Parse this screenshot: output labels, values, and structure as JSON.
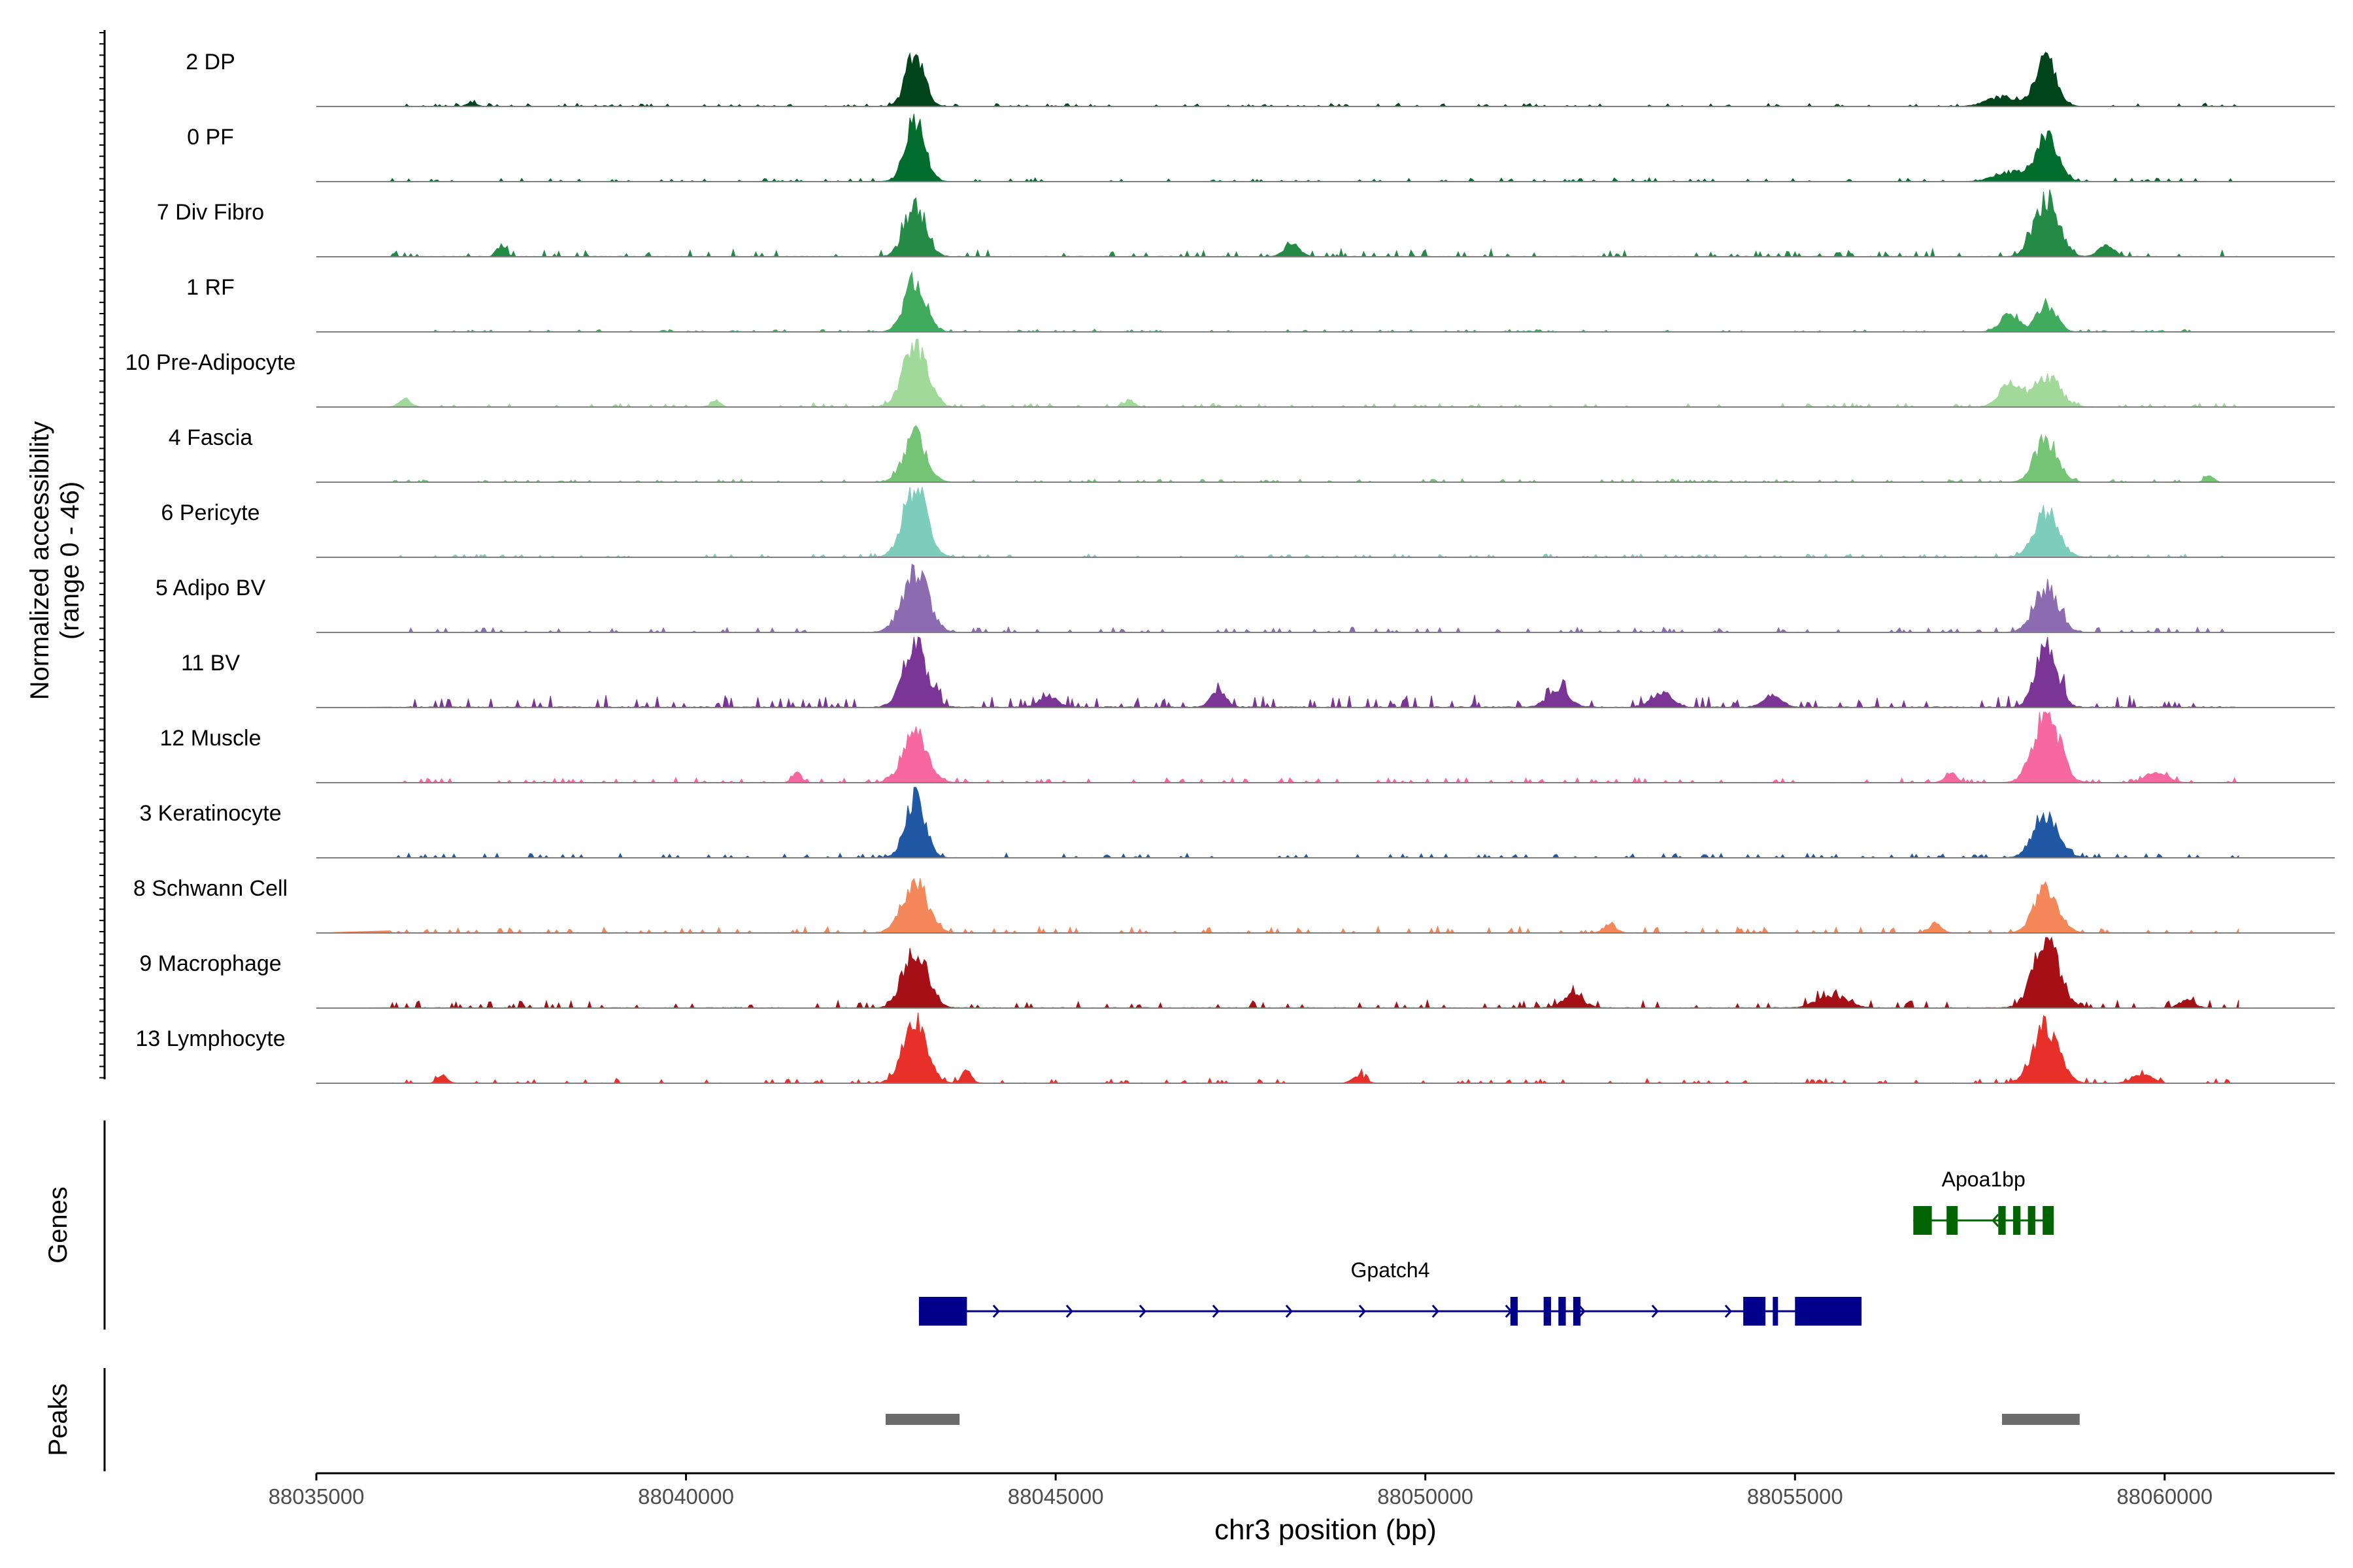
{
  "chart_data": {
    "type": "area",
    "xlabel": "chr3 position (bp)",
    "ylabel_line1": "Normalized accessibility",
    "ylabel_line2": "(range 0 - 46)",
    "yrange": [
      0,
      46
    ],
    "xlim": [
      88035000,
      88062300
    ],
    "xticks": [
      88035000,
      88040000,
      88045000,
      88050000,
      88055000,
      88060000
    ],
    "xtick_labels": [
      "88035000",
      "88040000",
      "88045000",
      "88050000",
      "88055000",
      "88060000"
    ],
    "tracks": [
      {
        "name": "2 DP",
        "color": "#00441b",
        "peaks": [
          [
            88043100,
            36,
            120
          ],
          [
            88058400,
            30,
            140
          ],
          [
            88037100,
            3,
            60
          ],
          [
            88057800,
            6,
            200
          ]
        ],
        "noise": 1.2
      },
      {
        "name": "0 PF",
        "color": "#006d2c",
        "peaks": [
          [
            88043100,
            38,
            130
          ],
          [
            88058400,
            28,
            150
          ],
          [
            88057900,
            6,
            200
          ]
        ],
        "noise": 1.4
      },
      {
        "name": "7 Div Fibro",
        "color": "#238b45",
        "peaks": [
          [
            88043100,
            34,
            140
          ],
          [
            88058400,
            38,
            160
          ],
          [
            88037500,
            7,
            60
          ],
          [
            88048200,
            9,
            100
          ],
          [
            88059200,
            8,
            100
          ]
        ],
        "noise": 3.0
      },
      {
        "name": "1 RF",
        "color": "#41ab5d",
        "peaks": [
          [
            88043100,
            33,
            140
          ],
          [
            88058400,
            18,
            130
          ],
          [
            88057900,
            12,
            120
          ]
        ],
        "noise": 1.0
      },
      {
        "name": "10 Pre-Adipocyte",
        "color": "#a1d99b",
        "peaks": [
          [
            88043100,
            38,
            160
          ],
          [
            88058400,
            20,
            180
          ],
          [
            88057900,
            14,
            140
          ],
          [
            88036200,
            5,
            80
          ],
          [
            88040400,
            5,
            60
          ],
          [
            88046000,
            5,
            60
          ]
        ],
        "noise": 1.6
      },
      {
        "name": "4 Fascia",
        "color": "#74c476",
        "peaks": [
          [
            88043100,
            30,
            150
          ],
          [
            88058400,
            28,
            150
          ],
          [
            88060600,
            4,
            60
          ]
        ],
        "noise": 1.2
      },
      {
        "name": "6 Pericyte",
        "color": "#7ccdbb",
        "peaks": [
          [
            88043100,
            46,
            160
          ],
          [
            88058400,
            30,
            160
          ]
        ],
        "noise": 1.4
      },
      {
        "name": "5 Adipo BV",
        "color": "#8c6bb1",
        "peaks": [
          [
            88043100,
            40,
            170
          ],
          [
            88058400,
            30,
            160
          ]
        ],
        "noise": 2.0
      },
      {
        "name": "11 BV",
        "color": "#7a3596",
        "peaks": [
          [
            88043100,
            40,
            160
          ],
          [
            88058400,
            44,
            140
          ],
          [
            88044900,
            8,
            120
          ],
          [
            88047200,
            10,
            100
          ],
          [
            88051800,
            12,
            140
          ],
          [
            88053200,
            10,
            140
          ],
          [
            88054700,
            8,
            120
          ]
        ],
        "noise": 5.0
      },
      {
        "name": "12 Muscle",
        "color": "#f768a1",
        "peaks": [
          [
            88043100,
            34,
            160
          ],
          [
            88058400,
            46,
            170
          ],
          [
            88041500,
            6,
            60
          ],
          [
            88057100,
            6,
            80
          ],
          [
            88059900,
            7,
            140
          ]
        ],
        "noise": 2.0
      },
      {
        "name": "3 Keratinocyte",
        "color": "#2158a6",
        "peaks": [
          [
            88043100,
            40,
            130
          ],
          [
            88058400,
            26,
            170
          ]
        ],
        "noise": 1.8
      },
      {
        "name": "8 Schwann Cell",
        "color": "#f4875a",
        "peaks": [
          [
            88043100,
            30,
            170
          ],
          [
            88058400,
            28,
            160
          ],
          [
            88052500,
            6,
            80
          ],
          [
            88056900,
            6,
            80
          ]
        ],
        "noise": 2.4
      },
      {
        "name": "9 Macrophage",
        "color": "#a50f15",
        "peaks": [
          [
            88043100,
            38,
            160
          ],
          [
            88058400,
            44,
            170
          ],
          [
            88052000,
            8,
            140
          ],
          [
            88055500,
            8,
            200
          ],
          [
            88060300,
            5,
            100
          ]
        ],
        "noise": 3.2
      },
      {
        "name": "13 Lymphocyte",
        "color": "#e8302a",
        "peaks": [
          [
            88043100,
            40,
            160
          ],
          [
            88058400,
            36,
            170
          ],
          [
            88036700,
            6,
            60
          ],
          [
            88043800,
            10,
            60
          ],
          [
            88049100,
            5,
            80
          ],
          [
            88059700,
            6,
            120
          ]
        ],
        "noise": 2.0
      }
    ],
    "genes": [
      {
        "name": "Gpatch4",
        "color": "#00008b",
        "start": 88043150,
        "end": 88055900,
        "strand": "+",
        "exons": [
          [
            88043150,
            88043800
          ],
          [
            88051150,
            88051250
          ],
          [
            88051600,
            88051700
          ],
          [
            88051800,
            88051900
          ],
          [
            88052000,
            88052100
          ],
          [
            88054300,
            88054600
          ],
          [
            88054700,
            88054760
          ],
          [
            88055000,
            88055900
          ]
        ]
      },
      {
        "name": "Apoa1bp",
        "color": "#006400",
        "start": 88056600,
        "end": 88058500,
        "strand": "-",
        "exons": [
          [
            88056600,
            88056850
          ],
          [
            88057050,
            88057200
          ],
          [
            88057750,
            88057850
          ],
          [
            88057950,
            88058050
          ],
          [
            88058150,
            88058250
          ],
          [
            88058350,
            88058500
          ]
        ]
      }
    ],
    "genes_label": "Genes",
    "peaks_label": "Peaks",
    "peak_regions": [
      [
        88042700,
        88043700
      ],
      [
        88057800,
        88058850
      ]
    ],
    "peak_color": "#6b6b6b"
  }
}
